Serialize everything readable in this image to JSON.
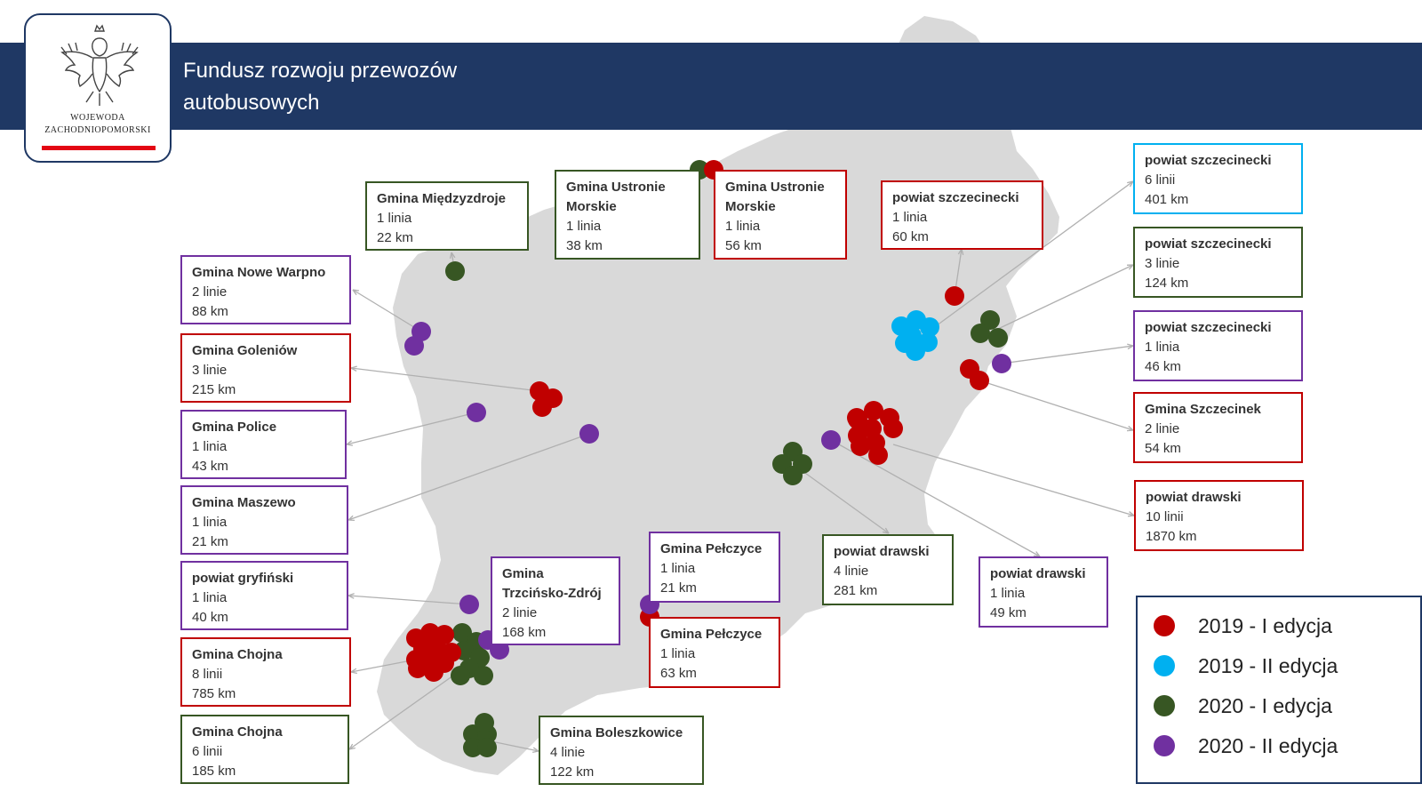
{
  "header": {
    "title_line1": "Fundusz rozwoju przewozów",
    "title_line2": "autobusowych"
  },
  "logo": {
    "line1": "WOJEWODA",
    "line2": "ZACHODNIOPOMORSKI",
    "icon": "eagle-emblem-icon"
  },
  "colors": {
    "header": "#1f3864",
    "map": "#d9d9d9",
    "2019-I": "#c00000",
    "2019-II": "#00b0f0",
    "2020-I": "#375623",
    "2020-II": "#7030a0"
  },
  "legend": [
    {
      "label": "2019 - I edycja",
      "edition": "2019-I"
    },
    {
      "label": "2019 - II edycja",
      "edition": "2019-II"
    },
    {
      "label": "2020 - I edycja",
      "edition": "2020-I"
    },
    {
      "label": "2020 - II edycja",
      "edition": "2020-II"
    }
  ],
  "labels": [
    {
      "id": "miedzyzdroje",
      "name": "Gmina Międzyzdroje",
      "lines": "1 linia",
      "km": "22 km",
      "edition": "2020-I"
    },
    {
      "id": "ustronie-2020",
      "name": "Gmina Ustronie Morskie",
      "lines": "1 linia",
      "km": "38 km",
      "edition": "2020-I"
    },
    {
      "id": "ustronie-2019",
      "name": "Gmina Ustronie Morskie",
      "lines": "1 linia",
      "km": "56 km",
      "edition": "2019-I"
    },
    {
      "id": "szczecinecki-red",
      "name": "powiat szczecinecki",
      "lines": "1 linia",
      "km": "60 km",
      "edition": "2019-I"
    },
    {
      "id": "szczecinecki-blue",
      "name": "powiat szczecinecki",
      "lines": "6 linii",
      "km": "401 km",
      "edition": "2019-II"
    },
    {
      "id": "szczecinecki-green",
      "name": "powiat szczecinecki",
      "lines": "3 linie",
      "km": "124 km",
      "edition": "2020-I"
    },
    {
      "id": "szczecinecki-purple",
      "name": "powiat szczecinecki",
      "lines": "1 linia",
      "km": "46 km",
      "edition": "2020-II"
    },
    {
      "id": "szczecinek",
      "name": "Gmina Szczecinek",
      "lines": "2 linie",
      "km": "54 km",
      "edition": "2019-I"
    },
    {
      "id": "drawski-red",
      "name": "powiat drawski",
      "lines": "10 linii",
      "km": "1870 km",
      "edition": "2019-I"
    },
    {
      "id": "drawski-green",
      "name": "powiat drawski",
      "lines": "4 linie",
      "km": "281 km",
      "edition": "2020-I"
    },
    {
      "id": "drawski-purple",
      "name": "powiat drawski",
      "lines": "1 linia",
      "km": "49 km",
      "edition": "2020-II"
    },
    {
      "id": "nowe-warpno",
      "name": "Gmina Nowe Warpno",
      "lines": "2 linie",
      "km": "88 km",
      "edition": "2020-II"
    },
    {
      "id": "goleniow",
      "name": "Gmina Goleniów",
      "lines": "3 linie",
      "km": "215 km",
      "edition": "2019-I"
    },
    {
      "id": "police",
      "name": "Gmina Police",
      "lines": "1 linia",
      "km": "43 km",
      "edition": "2020-II"
    },
    {
      "id": "maszewo",
      "name": "Gmina Maszewo",
      "lines": "1 linia",
      "km": "21 km",
      "edition": "2020-II"
    },
    {
      "id": "gryfinski",
      "name": "powiat gryfiński",
      "lines": "1 linia",
      "km": "40 km",
      "edition": "2020-II"
    },
    {
      "id": "chojna-red",
      "name": "Gmina Chojna",
      "lines": "8 linii",
      "km": "785 km",
      "edition": "2019-I"
    },
    {
      "id": "chojna-green",
      "name": "Gmina Chojna",
      "lines": "6 linii",
      "km": "185 km",
      "edition": "2020-I"
    },
    {
      "id": "trzcinsko",
      "name": "Gmina Trzcińsko-Zdrój",
      "lines": "2 linie",
      "km": "168 km",
      "edition": "2020-II"
    },
    {
      "id": "pelczyce-purple",
      "name": "Gmina Pełczyce",
      "lines": "1 linia",
      "km": "21 km",
      "edition": "2020-II"
    },
    {
      "id": "pelczyce-red",
      "name": "Gmina Pełczyce",
      "lines": "1 linia",
      "km": "63 km",
      "edition": "2019-I"
    },
    {
      "id": "boleszkowice",
      "name": "Gmina Boleszkowice",
      "lines": "4 linie",
      "km": "122 km",
      "edition": "2020-I"
    }
  ]
}
